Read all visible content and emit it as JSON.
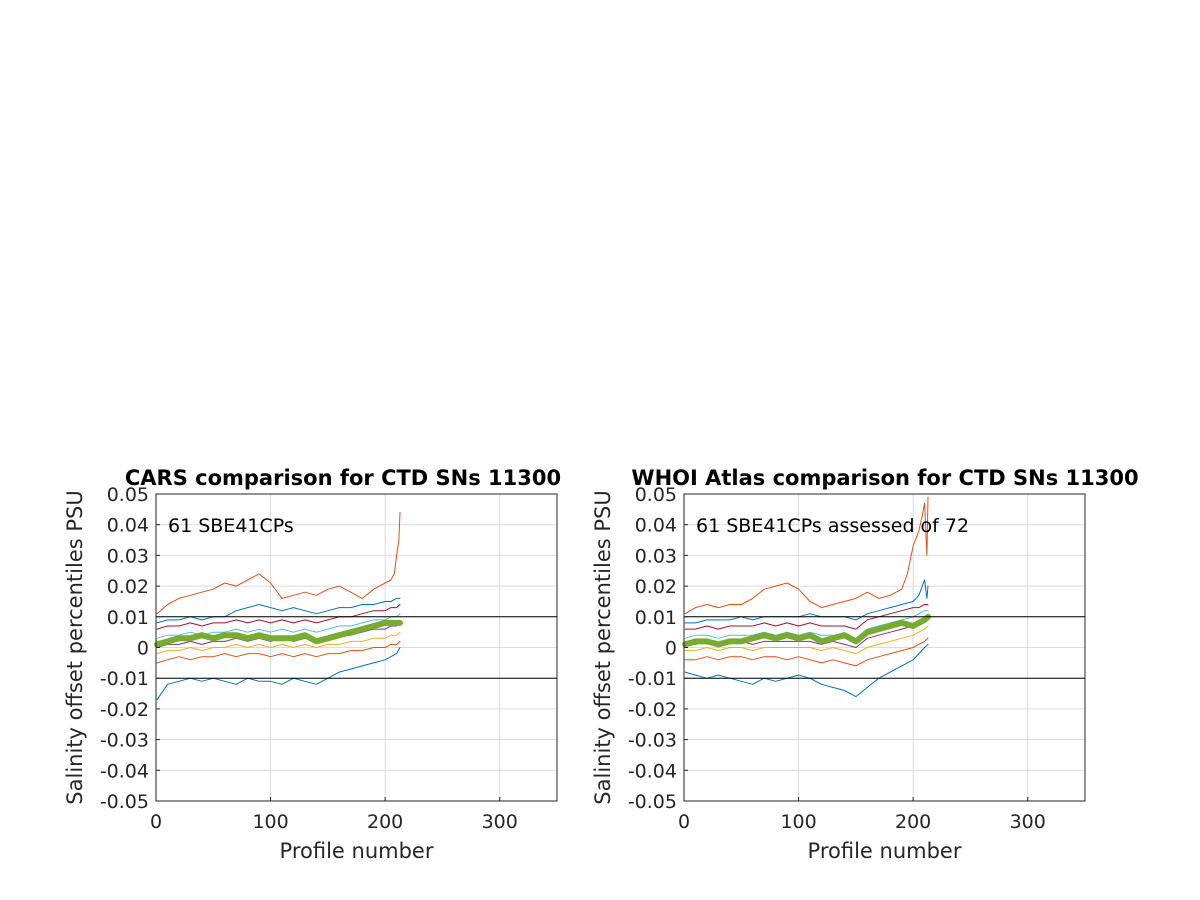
{
  "chart_data": [
    {
      "type": "line",
      "title": "CARS comparison for CTD SNs 11300",
      "xlabel": "Profile number",
      "ylabel": "Salinity offset percentiles PSU",
      "xlim": [
        0,
        350
      ],
      "ylim": [
        -0.05,
        0.05
      ],
      "xticks": [
        0,
        100,
        200,
        300
      ],
      "xtick_labels": [
        "0",
        "100",
        "200",
        "300"
      ],
      "yticks": [
        -0.05,
        -0.04,
        -0.03,
        -0.02,
        -0.01,
        0,
        0.01,
        0.02,
        0.03,
        0.04,
        0.05
      ],
      "ytick_labels": [
        "-0.05",
        "-0.04",
        "-0.03",
        "-0.02",
        "-0.01",
        "0",
        "0.01",
        "0.02",
        "0.03",
        "0.04",
        "0.05"
      ],
      "grid": true,
      "annotation": "61 SBE41CPs",
      "reference_lines": [
        0.01,
        -0.01
      ],
      "series": [
        {
          "color": "#0072BD",
          "x": [
            1,
            10,
            20,
            30,
            40,
            50,
            60,
            70,
            80,
            90,
            100,
            110,
            120,
            130,
            140,
            150,
            160,
            170,
            180,
            190,
            200,
            205,
            210,
            213
          ],
          "values": [
            -0.017,
            -0.012,
            -0.011,
            -0.01,
            -0.011,
            -0.01,
            -0.011,
            -0.012,
            -0.01,
            -0.011,
            -0.011,
            -0.012,
            -0.01,
            -0.011,
            -0.012,
            -0.01,
            -0.008,
            -0.007,
            -0.006,
            -0.005,
            -0.004,
            -0.003,
            -0.002,
            0.0
          ]
        },
        {
          "color": "#D95319",
          "x": [
            1,
            10,
            20,
            30,
            40,
            50,
            60,
            70,
            80,
            90,
            100,
            110,
            120,
            130,
            140,
            150,
            160,
            170,
            180,
            190,
            200,
            205,
            210,
            213
          ],
          "values": [
            -0.005,
            -0.004,
            -0.003,
            -0.004,
            -0.003,
            -0.003,
            -0.002,
            -0.003,
            -0.002,
            -0.002,
            -0.003,
            -0.002,
            -0.003,
            -0.002,
            -0.003,
            -0.002,
            -0.002,
            -0.001,
            -0.001,
            0.0,
            0.0,
            0.001,
            0.001,
            0.002
          ]
        },
        {
          "color": "#EDB120",
          "x": [
            1,
            10,
            20,
            30,
            40,
            50,
            60,
            70,
            80,
            90,
            100,
            110,
            120,
            130,
            140,
            150,
            160,
            170,
            180,
            190,
            200,
            205,
            210,
            213
          ],
          "values": [
            -0.002,
            -0.001,
            -0.001,
            0.0,
            -0.001,
            0.0,
            0.0,
            0.001,
            0.0,
            0.001,
            0.0,
            0.001,
            0.0,
            0.001,
            0.0,
            0.001,
            0.001,
            0.002,
            0.002,
            0.003,
            0.003,
            0.004,
            0.004,
            0.005
          ]
        },
        {
          "color": "#7E2F8E",
          "x": [
            1,
            10,
            20,
            30,
            40,
            50,
            60,
            70,
            80,
            90,
            100,
            110,
            120,
            130,
            140,
            150,
            160,
            170,
            180,
            190,
            200,
            205,
            210,
            213
          ],
          "values": [
            0.0,
            0.001,
            0.001,
            0.002,
            0.001,
            0.002,
            0.002,
            0.003,
            0.002,
            0.003,
            0.002,
            0.003,
            0.002,
            0.003,
            0.002,
            0.003,
            0.004,
            0.004,
            0.005,
            0.006,
            0.006,
            0.007,
            0.007,
            0.008
          ]
        },
        {
          "color": "#4DBEEE",
          "x": [
            1,
            10,
            20,
            30,
            40,
            50,
            60,
            70,
            80,
            90,
            100,
            110,
            120,
            130,
            140,
            150,
            160,
            170,
            180,
            190,
            200,
            205,
            210,
            213
          ],
          "values": [
            0.003,
            0.004,
            0.004,
            0.005,
            0.004,
            0.005,
            0.005,
            0.006,
            0.005,
            0.006,
            0.005,
            0.006,
            0.005,
            0.006,
            0.005,
            0.006,
            0.007,
            0.007,
            0.008,
            0.009,
            0.009,
            0.01,
            0.01,
            0.011
          ]
        },
        {
          "color": "#A2142F",
          "x": [
            1,
            10,
            20,
            30,
            40,
            50,
            60,
            70,
            80,
            90,
            100,
            110,
            120,
            130,
            140,
            150,
            160,
            170,
            180,
            190,
            200,
            205,
            210,
            213
          ],
          "values": [
            0.006,
            0.007,
            0.007,
            0.008,
            0.007,
            0.008,
            0.008,
            0.009,
            0.008,
            0.009,
            0.008,
            0.009,
            0.008,
            0.009,
            0.008,
            0.009,
            0.01,
            0.01,
            0.011,
            0.012,
            0.012,
            0.013,
            0.013,
            0.014
          ]
        },
        {
          "color": "#0072BD",
          "x": [
            1,
            10,
            20,
            30,
            40,
            50,
            60,
            70,
            80,
            90,
            100,
            110,
            120,
            130,
            140,
            150,
            160,
            170,
            180,
            190,
            200,
            205,
            210,
            213
          ],
          "values": [
            0.008,
            0.009,
            0.009,
            0.01,
            0.009,
            0.01,
            0.01,
            0.012,
            0.013,
            0.014,
            0.013,
            0.012,
            0.013,
            0.012,
            0.011,
            0.012,
            0.013,
            0.013,
            0.014,
            0.014,
            0.015,
            0.015,
            0.016,
            0.016
          ]
        },
        {
          "color": "#D95319",
          "x": [
            1,
            10,
            20,
            30,
            40,
            50,
            60,
            70,
            80,
            90,
            100,
            110,
            120,
            130,
            140,
            150,
            160,
            170,
            180,
            190,
            200,
            205,
            208,
            210,
            212,
            213
          ],
          "values": [
            0.011,
            0.014,
            0.016,
            0.017,
            0.018,
            0.019,
            0.021,
            0.02,
            0.022,
            0.024,
            0.021,
            0.016,
            0.017,
            0.018,
            0.017,
            0.019,
            0.02,
            0.018,
            0.016,
            0.019,
            0.021,
            0.022,
            0.024,
            0.03,
            0.035,
            0.044
          ]
        },
        {
          "color": "#77AC30",
          "bold": true,
          "x": [
            1,
            10,
            20,
            30,
            40,
            50,
            60,
            70,
            80,
            90,
            100,
            110,
            120,
            130,
            140,
            150,
            160,
            170,
            180,
            190,
            200,
            205,
            210,
            213
          ],
          "values": [
            0.001,
            0.002,
            0.003,
            0.003,
            0.004,
            0.003,
            0.004,
            0.004,
            0.003,
            0.004,
            0.003,
            0.003,
            0.003,
            0.004,
            0.002,
            0.003,
            0.004,
            0.005,
            0.006,
            0.007,
            0.008,
            0.008,
            0.008,
            0.008
          ]
        }
      ]
    },
    {
      "type": "line",
      "title": "WHOI Atlas comparison for CTD SNs 11300",
      "xlabel": "Profile number",
      "ylabel": "Salinity offset percentiles PSU",
      "xlim": [
        0,
        350
      ],
      "ylim": [
        -0.05,
        0.05
      ],
      "xticks": [
        0,
        100,
        200,
        300
      ],
      "xtick_labels": [
        "0",
        "100",
        "200",
        "300"
      ],
      "yticks": [
        -0.05,
        -0.04,
        -0.03,
        -0.02,
        -0.01,
        0,
        0.01,
        0.02,
        0.03,
        0.04,
        0.05
      ],
      "ytick_labels": [
        "-0.05",
        "-0.04",
        "-0.03",
        "-0.02",
        "-0.01",
        "0",
        "0.01",
        "0.02",
        "0.03",
        "0.04",
        "0.05"
      ],
      "grid": true,
      "annotation": "61 SBE41CPs assessed of 72",
      "reference_lines": [
        0.01,
        -0.01
      ],
      "series": [
        {
          "color": "#0072BD",
          "x": [
            1,
            10,
            20,
            30,
            40,
            50,
            60,
            70,
            80,
            90,
            100,
            110,
            120,
            130,
            140,
            150,
            160,
            170,
            180,
            190,
            200,
            205,
            210,
            213
          ],
          "values": [
            -0.008,
            -0.009,
            -0.01,
            -0.009,
            -0.01,
            -0.011,
            -0.012,
            -0.01,
            -0.011,
            -0.01,
            -0.009,
            -0.01,
            -0.012,
            -0.013,
            -0.014,
            -0.016,
            -0.013,
            -0.01,
            -0.008,
            -0.006,
            -0.004,
            -0.002,
            0.0,
            0.001
          ]
        },
        {
          "color": "#D95319",
          "x": [
            1,
            10,
            20,
            30,
            40,
            50,
            60,
            70,
            80,
            90,
            100,
            110,
            120,
            130,
            140,
            150,
            160,
            170,
            180,
            190,
            200,
            205,
            210,
            213
          ],
          "values": [
            -0.004,
            -0.004,
            -0.003,
            -0.004,
            -0.003,
            -0.003,
            -0.004,
            -0.003,
            -0.003,
            -0.004,
            -0.003,
            -0.004,
            -0.005,
            -0.004,
            -0.005,
            -0.006,
            -0.004,
            -0.003,
            -0.002,
            -0.001,
            0.0,
            0.001,
            0.002,
            0.003
          ]
        },
        {
          "color": "#EDB120",
          "x": [
            1,
            10,
            20,
            30,
            40,
            50,
            60,
            70,
            80,
            90,
            100,
            110,
            120,
            130,
            140,
            150,
            160,
            170,
            180,
            190,
            200,
            205,
            210,
            213
          ],
          "values": [
            -0.001,
            -0.001,
            0.0,
            -0.001,
            0.0,
            0.0,
            -0.001,
            0.0,
            0.0,
            0.0,
            0.0,
            0.0,
            -0.001,
            0.0,
            -0.001,
            -0.002,
            0.0,
            0.001,
            0.002,
            0.003,
            0.004,
            0.005,
            0.006,
            0.007
          ]
        },
        {
          "color": "#7E2F8E",
          "x": [
            1,
            10,
            20,
            30,
            40,
            50,
            60,
            70,
            80,
            90,
            100,
            110,
            120,
            130,
            140,
            150,
            160,
            170,
            180,
            190,
            200,
            205,
            210,
            213
          ],
          "values": [
            0.001,
            0.001,
            0.002,
            0.001,
            0.002,
            0.002,
            0.001,
            0.002,
            0.002,
            0.002,
            0.002,
            0.002,
            0.001,
            0.002,
            0.001,
            0.0,
            0.003,
            0.004,
            0.005,
            0.006,
            0.007,
            0.008,
            0.009,
            0.01
          ]
        },
        {
          "color": "#4DBEEE",
          "x": [
            1,
            10,
            20,
            30,
            40,
            50,
            60,
            70,
            80,
            90,
            100,
            110,
            120,
            130,
            140,
            150,
            160,
            170,
            180,
            190,
            200,
            205,
            210,
            213
          ],
          "values": [
            0.003,
            0.004,
            0.004,
            0.003,
            0.004,
            0.004,
            0.004,
            0.005,
            0.004,
            0.005,
            0.004,
            0.005,
            0.004,
            0.004,
            0.004,
            0.003,
            0.006,
            0.007,
            0.008,
            0.009,
            0.01,
            0.011,
            0.012,
            0.012
          ]
        },
        {
          "color": "#A2142F",
          "x": [
            1,
            10,
            20,
            30,
            40,
            50,
            60,
            70,
            80,
            90,
            100,
            110,
            120,
            130,
            140,
            150,
            160,
            170,
            180,
            190,
            200,
            205,
            210,
            213
          ],
          "values": [
            0.006,
            0.006,
            0.007,
            0.006,
            0.007,
            0.007,
            0.007,
            0.008,
            0.007,
            0.008,
            0.007,
            0.008,
            0.007,
            0.007,
            0.007,
            0.006,
            0.009,
            0.01,
            0.011,
            0.012,
            0.013,
            0.013,
            0.014,
            0.014
          ]
        },
        {
          "color": "#0072BD",
          "x": [
            1,
            10,
            20,
            30,
            40,
            50,
            60,
            70,
            80,
            90,
            100,
            110,
            120,
            130,
            140,
            150,
            160,
            170,
            180,
            190,
            200,
            205,
            208,
            210,
            212,
            213
          ],
          "values": [
            0.008,
            0.008,
            0.009,
            0.009,
            0.009,
            0.01,
            0.009,
            0.01,
            0.01,
            0.01,
            0.01,
            0.011,
            0.01,
            0.01,
            0.01,
            0.009,
            0.011,
            0.012,
            0.013,
            0.014,
            0.015,
            0.017,
            0.02,
            0.022,
            0.016,
            0.02
          ]
        },
        {
          "color": "#D95319",
          "x": [
            1,
            10,
            20,
            30,
            40,
            50,
            60,
            70,
            80,
            90,
            100,
            110,
            120,
            130,
            140,
            150,
            160,
            170,
            180,
            190,
            195,
            200,
            205,
            208,
            210,
            212,
            213
          ],
          "values": [
            0.011,
            0.013,
            0.014,
            0.013,
            0.014,
            0.014,
            0.016,
            0.019,
            0.02,
            0.021,
            0.019,
            0.015,
            0.013,
            0.014,
            0.015,
            0.016,
            0.018,
            0.016,
            0.017,
            0.019,
            0.024,
            0.033,
            0.038,
            0.043,
            0.047,
            0.03,
            0.049
          ]
        },
        {
          "color": "#77AC30",
          "bold": true,
          "x": [
            1,
            10,
            20,
            30,
            40,
            50,
            60,
            70,
            80,
            90,
            100,
            110,
            120,
            130,
            140,
            150,
            160,
            170,
            180,
            190,
            200,
            205,
            210,
            213
          ],
          "values": [
            0.001,
            0.002,
            0.002,
            0.001,
            0.002,
            0.002,
            0.003,
            0.004,
            0.003,
            0.004,
            0.003,
            0.004,
            0.002,
            0.003,
            0.004,
            0.002,
            0.005,
            0.006,
            0.007,
            0.008,
            0.007,
            0.008,
            0.009,
            0.01
          ]
        }
      ]
    }
  ]
}
